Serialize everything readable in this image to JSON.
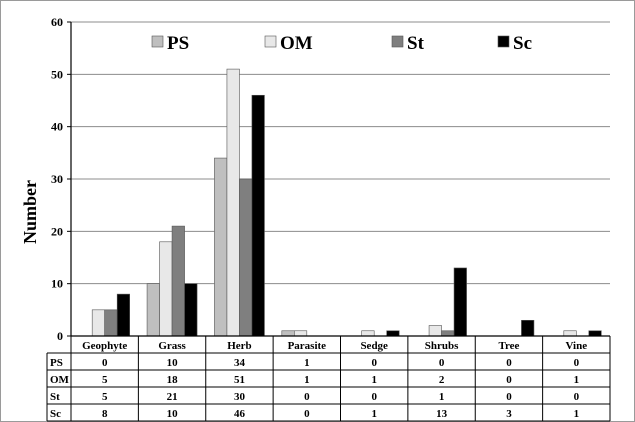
{
  "chart_data": {
    "type": "bar",
    "ylabel": "Number",
    "xlabel": "",
    "ylim": [
      0,
      60
    ],
    "yticks": [
      0,
      10,
      20,
      30,
      40,
      50,
      60
    ],
    "grid": true,
    "legend_placement": "top",
    "categories": [
      "Geophyte",
      "Grass",
      "Herb",
      "Parasite",
      "Sedge",
      "Shrubs",
      "Tree",
      "Vine"
    ],
    "series": [
      {
        "name": "PS",
        "color": "#bfbfbf",
        "values": [
          0,
          10,
          34,
          1,
          0,
          0,
          0,
          0
        ]
      },
      {
        "name": "OM",
        "color": "#e8e8e8",
        "values": [
          5,
          18,
          51,
          1,
          1,
          2,
          0,
          1
        ]
      },
      {
        "name": "St",
        "color": "#7f7f7f",
        "values": [
          5,
          21,
          30,
          0,
          0,
          1,
          0,
          0
        ]
      },
      {
        "name": "Sc",
        "color": "#000000",
        "values": [
          8,
          10,
          46,
          0,
          1,
          13,
          3,
          1
        ]
      }
    ]
  }
}
